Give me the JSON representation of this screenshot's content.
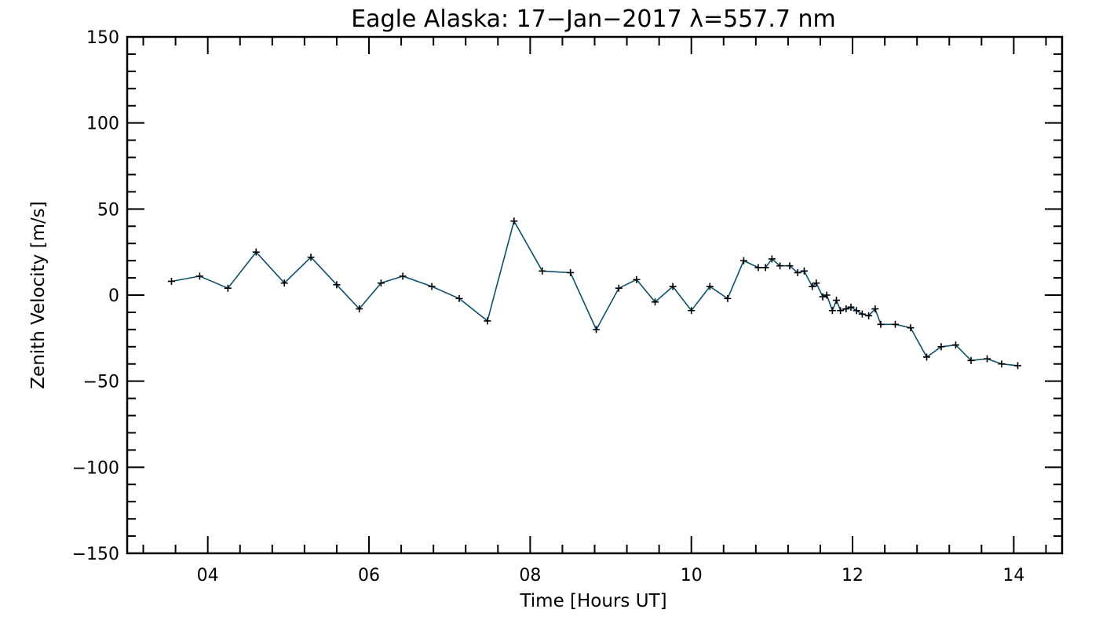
{
  "chart_data": {
    "type": "line",
    "title": "Eagle Alaska: 17−Jan−2017 λ=557.7 nm",
    "xlabel": "Time [Hours UT]",
    "ylabel": "Zenith Velocity [m/s]",
    "xlim": [
      3.0,
      14.6
    ],
    "ylim": [
      -150,
      150
    ],
    "x_ticks": [
      4,
      6,
      8,
      10,
      12,
      14
    ],
    "x_tick_labels": [
      "04",
      "06",
      "08",
      "10",
      "12",
      "14"
    ],
    "y_ticks": [
      -150,
      -100,
      -50,
      0,
      50,
      100,
      150
    ],
    "y_tick_labels": [
      "−150",
      "−100",
      "−50",
      "0",
      "50",
      "100",
      "150"
    ],
    "grid": false,
    "line_color": "#0d4f6b",
    "marker": "plus",
    "series": [
      {
        "x": [
          3.55,
          3.9,
          4.25,
          4.6,
          4.95,
          5.28,
          5.6,
          5.88,
          6.15,
          6.42,
          6.78,
          7.12,
          7.47,
          7.8,
          8.15,
          8.5,
          8.82,
          9.1,
          9.32,
          9.55,
          9.77,
          10.0,
          10.23,
          10.45,
          10.65,
          10.83,
          10.92,
          11.0,
          11.1,
          11.22,
          11.32,
          11.4,
          11.5,
          11.55,
          11.63,
          11.68,
          11.75,
          11.8,
          11.85,
          11.92,
          11.98,
          12.05,
          12.12,
          12.2,
          12.28,
          12.35,
          12.53,
          12.72,
          12.92,
          13.1,
          13.28,
          13.47,
          13.67,
          13.85,
          14.05
        ],
        "y": [
          8,
          11,
          4,
          25,
          7,
          22,
          6,
          -8,
          7,
          11,
          5,
          -2,
          -15,
          43,
          14,
          13,
          -20,
          4,
          9,
          -4,
          5,
          -9,
          5,
          -2,
          20,
          16,
          16,
          21,
          17,
          17,
          13,
          14,
          5,
          7,
          -1,
          0,
          -9,
          -3,
          -9,
          -8,
          -7,
          -9,
          -11,
          -12,
          -8,
          -17,
          -17,
          -19,
          -36,
          -30,
          -29,
          -38,
          -37,
          -40,
          -41
        ]
      }
    ]
  }
}
